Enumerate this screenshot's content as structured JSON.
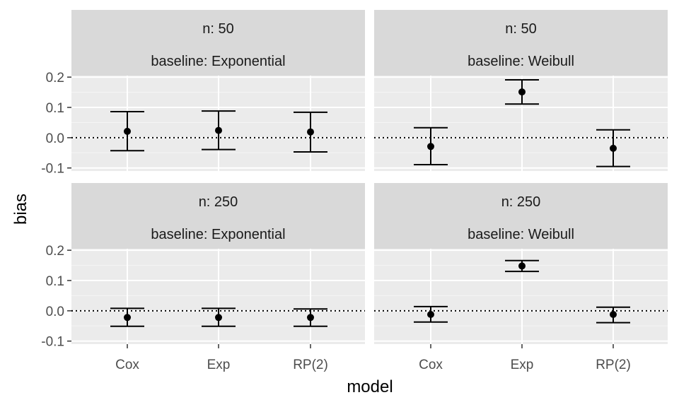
{
  "chart_data": {
    "type": "errorbar-facet",
    "xlabel": "model",
    "ylabel": "bias",
    "categories": [
      "Cox",
      "Exp",
      "RP(2)"
    ],
    "y_ticks": [
      -0.1,
      0.0,
      0.1,
      0.2
    ],
    "y_tick_labels": [
      "-0.1",
      "0.0",
      "0.1",
      "0.2"
    ],
    "ylim": [
      -0.11,
      0.205
    ],
    "reference_line": {
      "y": 0,
      "style": "dotted"
    },
    "grid": true,
    "panels": [
      {
        "n_label": "n: 50",
        "baseline_label": "baseline: Exponential",
        "points": [
          {
            "model": "Cox",
            "estimate": 0.021,
            "lower": -0.043,
            "upper": 0.086
          },
          {
            "model": "Exp",
            "estimate": 0.024,
            "lower": -0.039,
            "upper": 0.088
          },
          {
            "model": "RP(2)",
            "estimate": 0.019,
            "lower": -0.047,
            "upper": 0.084
          }
        ]
      },
      {
        "n_label": "n: 50",
        "baseline_label": "baseline: Weibull",
        "points": [
          {
            "model": "Cox",
            "estimate": -0.029,
            "lower": -0.089,
            "upper": 0.033
          },
          {
            "model": "Exp",
            "estimate": 0.151,
            "lower": 0.111,
            "upper": 0.191
          },
          {
            "model": "RP(2)",
            "estimate": -0.035,
            "lower": -0.095,
            "upper": 0.026
          }
        ]
      },
      {
        "n_label": "n: 250",
        "baseline_label": "baseline: Exponential",
        "points": [
          {
            "model": "Cox",
            "estimate": -0.022,
            "lower": -0.051,
            "upper": 0.008
          },
          {
            "model": "Exp",
            "estimate": -0.022,
            "lower": -0.051,
            "upper": 0.008
          },
          {
            "model": "RP(2)",
            "estimate": -0.022,
            "lower": -0.051,
            "upper": 0.006
          }
        ]
      },
      {
        "n_label": "n: 250",
        "baseline_label": "baseline: Weibull",
        "points": [
          {
            "model": "Cox",
            "estimate": -0.012,
            "lower": -0.037,
            "upper": 0.014
          },
          {
            "model": "Exp",
            "estimate": 0.148,
            "lower": 0.13,
            "upper": 0.166
          },
          {
            "model": "RP(2)",
            "estimate": -0.012,
            "lower": -0.039,
            "upper": 0.012
          }
        ]
      }
    ]
  }
}
